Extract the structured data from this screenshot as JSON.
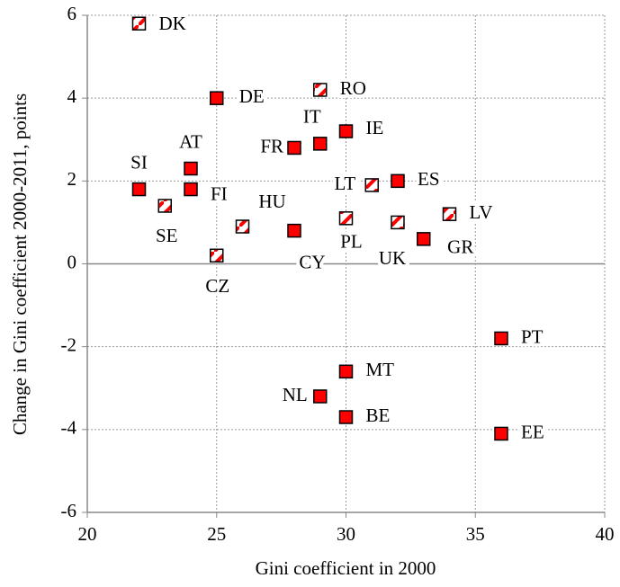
{
  "chart_data": {
    "type": "scatter",
    "x_label": "Gini coefficient in 2000",
    "y_label": "Change in Gini coefficient 2000-2011, points",
    "xlim": [
      20,
      40
    ],
    "xticks": [
      20,
      25,
      30,
      35,
      40
    ],
    "ylim": [
      -6,
      6
    ],
    "yticks": [
      -6,
      -4,
      -2,
      0,
      2,
      4,
      6
    ],
    "grid": true,
    "series": [
      {
        "color": "#ff0000",
        "fill": "solid",
        "labels": [
          "DE",
          "IT",
          "IE",
          "FR",
          "AT",
          "SI",
          "FI",
          "CY",
          "ES",
          "GR",
          "PT",
          "MT",
          "NL",
          "BE",
          "EE"
        ],
        "x": [
          25,
          29,
          30,
          28,
          24,
          22,
          24,
          28,
          32,
          33,
          36,
          30,
          29,
          30,
          36
        ],
        "values": [
          4.0,
          2.9,
          3.2,
          2.8,
          2.3,
          1.8,
          1.8,
          0.8,
          2.0,
          0.6,
          -1.8,
          -2.6,
          -3.2,
          -3.7,
          -4.1
        ]
      },
      {
        "color": "#ff0000",
        "fill": "hatched",
        "labels": [
          "DK",
          "RO",
          "SE",
          "HU",
          "CZ",
          "LT",
          "PL",
          "UK",
          "LV"
        ],
        "x": [
          22,
          29,
          23,
          26,
          25,
          31,
          30,
          32,
          34
        ],
        "values": [
          5.8,
          4.2,
          1.4,
          0.9,
          0.2,
          1.9,
          1.1,
          1.0,
          1.2
        ]
      }
    ]
  }
}
